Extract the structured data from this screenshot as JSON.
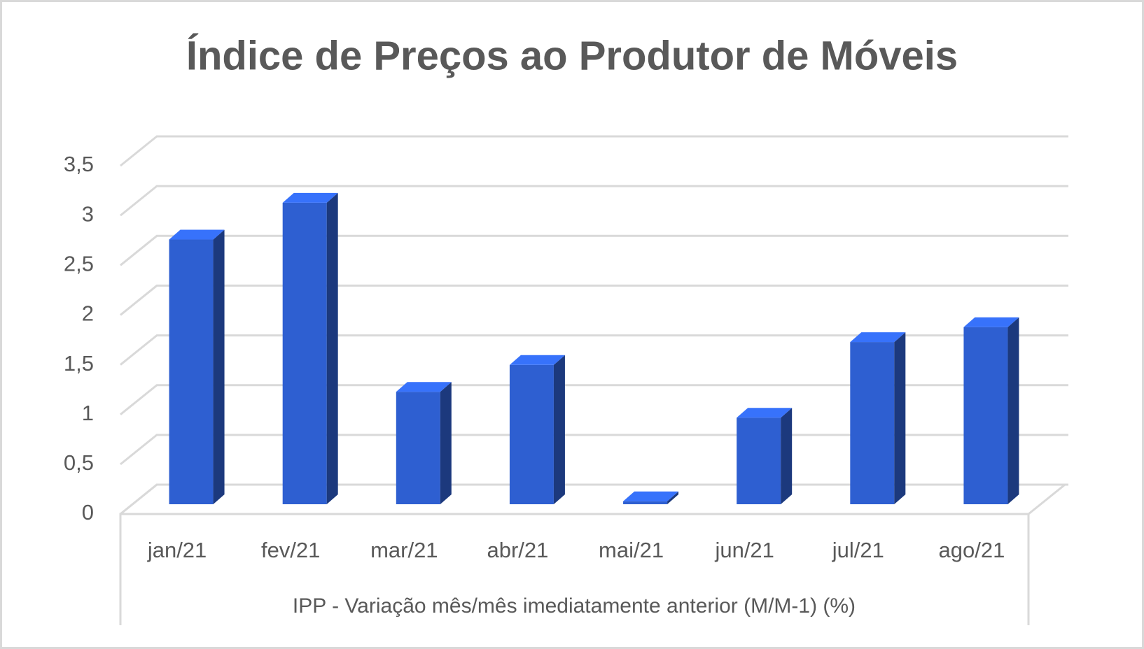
{
  "chart_data": {
    "type": "bar",
    "title": "Índice de Preços ao Produtor de Móveis",
    "x_label": "IPP - Variação mês/mês imediatamente anterior (M/M-1) (%)",
    "categories": [
      "jan/21",
      "fev/21",
      "mar/21",
      "abr/21",
      "mai/21",
      "jun/21",
      "jul/21",
      "ago/21"
    ],
    "values": [
      2.66,
      3.03,
      1.13,
      1.4,
      0.03,
      0.87,
      1.63,
      1.78
    ],
    "color": "#2e5fd1",
    "ylim": [
      0,
      3.5
    ],
    "yticks": [
      0,
      {
        "value": 0.5,
        "label": "0,5"
      },
      1,
      {
        "value": 1.5,
        "label": "1,5"
      },
      2,
      {
        "value": 2.5,
        "label": "2,5"
      },
      3,
      {
        "value": 3.5,
        "label": "3,5"
      }
    ],
    "grid": true
  }
}
